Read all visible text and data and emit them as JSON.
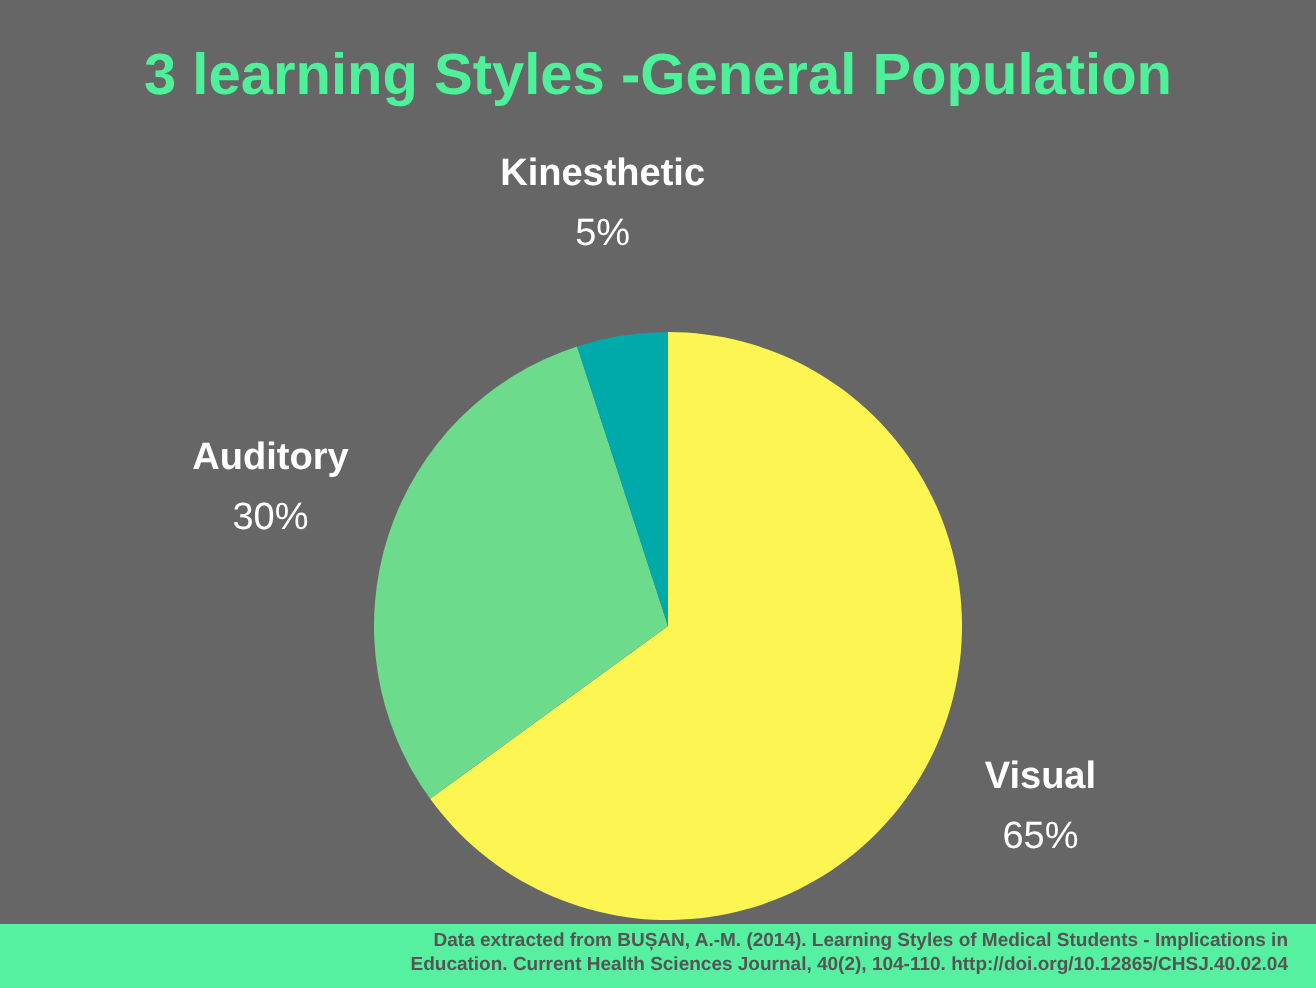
{
  "chart_data": {
    "type": "pie",
    "title": "3 learning Styles -General Population",
    "categories": [
      "Visual",
      "Auditory",
      "Kinesthetic"
    ],
    "values": [
      65,
      30,
      5
    ],
    "value_labels": [
      "65%",
      "30%",
      "5%"
    ],
    "colors": [
      "#fdf552",
      "#6cdb8b",
      "#00aaaa"
    ],
    "legend": false,
    "annotations": [
      "Data extracted from BUȘAN, A.-M. (2014). Learning Styles of Medical Students - Implications in Education. Current Health Sciences Journal, 40(2), 104-110. http://doi.org/10.12865/CHSJ.40.02.04"
    ]
  }
}
